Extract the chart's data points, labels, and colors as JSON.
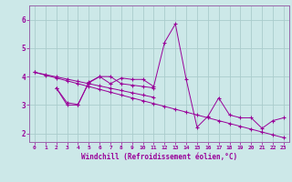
{
  "xlabel": "Windchill (Refroidissement éolien,°C)",
  "bg_color": "#cce8e8",
  "grid_color": "#aacccc",
  "line_color": "#990099",
  "spine_color": "#9966aa",
  "xlim": [
    -0.5,
    23.5
  ],
  "ylim": [
    1.7,
    6.5
  ],
  "yticks": [
    2,
    3,
    4,
    5,
    6
  ],
  "xticks": [
    0,
    1,
    2,
    3,
    4,
    5,
    6,
    7,
    8,
    9,
    10,
    11,
    12,
    13,
    14,
    15,
    16,
    17,
    18,
    19,
    20,
    21,
    22,
    23
  ],
  "series": [
    {
      "x": [
        0,
        1,
        2,
        3,
        4,
        5,
        6,
        7,
        8,
        9,
        10,
        11,
        12,
        13,
        14,
        15,
        16,
        17,
        18,
        19,
        20,
        21,
        22,
        23
      ],
      "y": [
        4.15,
        4.05,
        3.95,
        3.85,
        3.75,
        3.65,
        3.55,
        3.45,
        3.35,
        3.25,
        3.15,
        3.05,
        2.95,
        2.85,
        2.75,
        2.65,
        2.55,
        2.45,
        2.35,
        2.25,
        2.15,
        2.05,
        1.95,
        1.85
      ]
    },
    {
      "x": [
        0,
        1,
        2,
        3,
        4,
        5,
        6,
        7,
        8,
        9,
        10,
        11
      ],
      "y": [
        4.15,
        4.07,
        3.99,
        3.91,
        3.83,
        3.75,
        3.67,
        3.59,
        3.51,
        3.43,
        3.35,
        3.27
      ]
    },
    {
      "x": [
        2,
        3,
        4,
        5,
        6,
        7,
        8,
        9,
        10,
        11
      ],
      "y": [
        3.6,
        3.0,
        3.0,
        3.8,
        4.0,
        4.0,
        3.75,
        3.7,
        3.65,
        3.6
      ]
    },
    {
      "x": [
        2,
        3,
        4,
        5,
        6,
        7,
        8,
        9,
        10,
        11,
        12,
        13,
        14,
        15,
        16,
        17,
        18,
        19,
        20,
        21,
        22,
        23
      ],
      "y": [
        3.6,
        3.08,
        3.02,
        3.78,
        4.0,
        3.75,
        3.95,
        3.9,
        3.9,
        3.65,
        5.2,
        5.85,
        3.9,
        2.22,
        2.6,
        3.25,
        2.65,
        2.55,
        2.55,
        2.18,
        2.45,
        2.55
      ]
    }
  ]
}
